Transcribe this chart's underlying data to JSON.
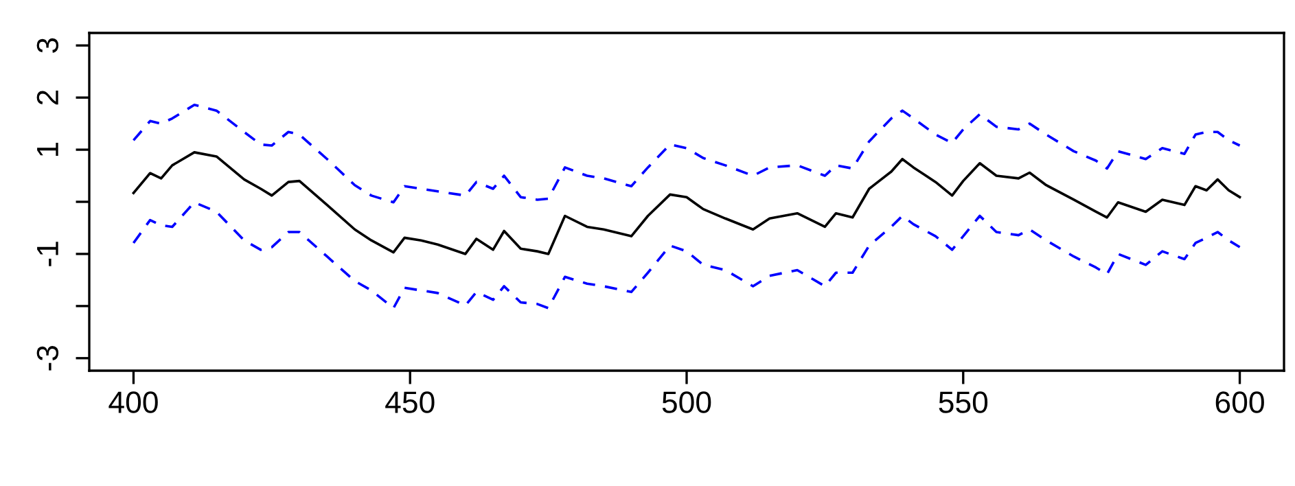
{
  "chart_data": {
    "type": "line",
    "x": [
      400,
      403,
      405,
      407,
      411,
      415,
      420,
      423,
      425,
      428,
      430,
      435,
      440,
      443,
      447,
      449,
      452,
      455,
      460,
      462,
      465,
      467,
      470,
      473,
      475,
      478,
      482,
      485,
      490,
      493,
      497,
      500,
      503,
      507,
      512,
      515,
      520,
      525,
      527,
      530,
      533,
      537,
      539,
      541,
      545,
      548,
      550,
      553,
      556,
      560,
      562,
      565,
      570,
      574,
      576,
      578,
      583,
      586,
      590,
      592,
      594,
      596,
      598,
      600
    ],
    "series": [
      {
        "color": "#000000",
        "line_style": "solid",
        "values": [
          0.17,
          0.55,
          0.45,
          0.7,
          0.95,
          0.87,
          0.43,
          0.25,
          0.12,
          0.38,
          0.4,
          -0.06,
          -0.53,
          -0.74,
          -0.97,
          -0.69,
          -0.74,
          -0.82,
          -1.0,
          -0.71,
          -0.92,
          -0.56,
          -0.9,
          -0.95,
          -1.0,
          -0.27,
          -0.48,
          -0.53,
          -0.66,
          -0.27,
          0.14,
          0.09,
          -0.14,
          -0.32,
          -0.53,
          -0.32,
          -0.22,
          -0.48,
          -0.22,
          -0.3,
          0.25,
          0.58,
          0.82,
          0.66,
          0.38,
          0.12,
          0.4,
          0.74,
          0.5,
          0.45,
          0.56,
          0.32,
          0.04,
          -0.19,
          -0.3,
          -0.01,
          -0.19,
          0.04,
          -0.06,
          0.3,
          0.22,
          0.43,
          0.22,
          0.09
        ]
      },
      {
        "color": "#0000ff",
        "line_style": "dashed",
        "values": [
          1.18,
          1.55,
          1.5,
          1.6,
          1.86,
          1.75,
          1.34,
          1.1,
          1.08,
          1.34,
          1.29,
          0.82,
          0.32,
          0.12,
          -0.01,
          0.3,
          0.25,
          0.2,
          0.12,
          0.38,
          0.25,
          0.5,
          0.09,
          0.04,
          0.06,
          0.66,
          0.5,
          0.45,
          0.3,
          0.66,
          1.1,
          1.03,
          0.84,
          0.7,
          0.5,
          0.66,
          0.7,
          0.5,
          0.7,
          0.64,
          1.16,
          1.6,
          1.75,
          1.6,
          1.29,
          1.13,
          1.39,
          1.68,
          1.44,
          1.39,
          1.5,
          1.29,
          0.97,
          0.79,
          0.64,
          0.97,
          0.82,
          1.03,
          0.92,
          1.29,
          1.34,
          1.34,
          1.18,
          1.08
        ]
      },
      {
        "color": "#0000ff",
        "line_style": "dashed",
        "values": [
          -0.79,
          -0.35,
          -0.45,
          -0.48,
          -0.01,
          -0.19,
          -0.74,
          -0.92,
          -0.87,
          -0.58,
          -0.58,
          -1.05,
          -1.52,
          -1.7,
          -2.04,
          -1.65,
          -1.7,
          -1.75,
          -1.99,
          -1.73,
          -1.88,
          -1.62,
          -1.93,
          -1.96,
          -2.04,
          -1.44,
          -1.57,
          -1.62,
          -1.73,
          -1.36,
          -0.84,
          -0.95,
          -1.21,
          -1.31,
          -1.62,
          -1.42,
          -1.31,
          -1.62,
          -1.36,
          -1.36,
          -0.84,
          -0.48,
          -0.27,
          -0.43,
          -0.66,
          -0.92,
          -0.66,
          -0.27,
          -0.58,
          -0.64,
          -0.53,
          -0.74,
          -1.05,
          -1.26,
          -1.39,
          -1.0,
          -1.21,
          -0.95,
          -1.1,
          -0.79,
          -0.69,
          -0.58,
          -0.74,
          -0.87
        ]
      }
    ],
    "xlim": [
      392,
      608
    ],
    "ylim": [
      -3.24,
      3.24
    ],
    "xticks": [
      400,
      450,
      500,
      550,
      600
    ],
    "yticks": [
      3,
      2,
      1,
      {
        "value": 0,
        "label": null
      },
      -1,
      {
        "value": -2,
        "label": null
      },
      -3
    ],
    "grid": false
  }
}
